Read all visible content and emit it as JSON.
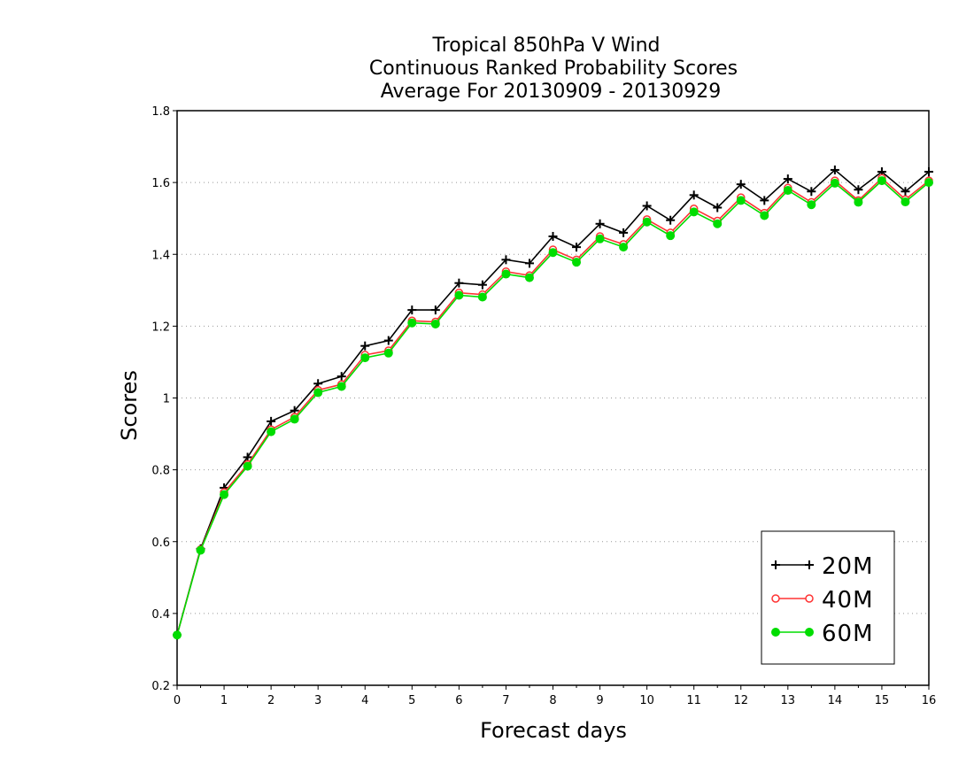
{
  "chart_data": {
    "type": "line",
    "title_lines": [
      "Tropical 850hPa V Wind",
      "Continuous Ranked Probability Scores",
      "Average For 20130909 - 20130929"
    ],
    "xlabel": "Forecast days",
    "ylabel": "Scores",
    "xlim": [
      0,
      16
    ],
    "ylim": [
      0.2,
      1.8
    ],
    "x_ticks": [
      0,
      1,
      2,
      3,
      4,
      5,
      6,
      7,
      8,
      9,
      10,
      11,
      12,
      13,
      14,
      15,
      16
    ],
    "y_ticks": [
      0.2,
      0.4,
      0.6,
      0.8,
      1,
      1.2,
      1.4,
      1.6,
      1.8
    ],
    "y_tick_labels": [
      "0.2",
      "0.4",
      "0.6",
      "0.8",
      "1",
      "1.2",
      "1.4",
      "1.6",
      "1.8"
    ],
    "grid": "horizontal dotted",
    "legend_position": "bottom-right",
    "x": [
      0,
      0.5,
      1,
      1.5,
      2,
      2.5,
      3,
      3.5,
      4,
      4.5,
      5,
      5.5,
      6,
      6.5,
      7,
      7.5,
      8,
      8.5,
      9,
      9.5,
      10,
      10.5,
      11,
      11.5,
      12,
      12.5,
      13,
      13.5,
      14,
      14.5,
      15,
      15.5,
      16
    ],
    "series": [
      {
        "name": "20M",
        "color": "#000000",
        "marker": "plus",
        "values": [
          0.34,
          0.58,
          0.75,
          0.835,
          0.935,
          0.965,
          1.04,
          1.06,
          1.145,
          1.16,
          1.245,
          1.245,
          1.32,
          1.315,
          1.385,
          1.375,
          1.45,
          1.42,
          1.485,
          1.46,
          1.535,
          1.495,
          1.565,
          1.53,
          1.595,
          1.55,
          1.61,
          1.575,
          1.635,
          1.58,
          1.63,
          1.575,
          1.63
        ]
      },
      {
        "name": "40M",
        "color": "#ff3333",
        "marker": "open-circle",
        "values": [
          0.34,
          0.578,
          0.737,
          0.815,
          0.912,
          0.947,
          1.022,
          1.038,
          1.12,
          1.132,
          1.215,
          1.212,
          1.293,
          1.288,
          1.352,
          1.341,
          1.413,
          1.385,
          1.45,
          1.428,
          1.497,
          1.46,
          1.527,
          1.493,
          1.558,
          1.515,
          1.585,
          1.545,
          1.605,
          1.55,
          1.612,
          1.553,
          1.605
        ]
      },
      {
        "name": "60M",
        "color": "#00dd00",
        "marker": "filled-circle",
        "values": [
          0.34,
          0.576,
          0.731,
          0.81,
          0.906,
          0.941,
          1.015,
          1.032,
          1.112,
          1.125,
          1.209,
          1.206,
          1.286,
          1.281,
          1.345,
          1.335,
          1.405,
          1.378,
          1.443,
          1.42,
          1.49,
          1.452,
          1.518,
          1.485,
          1.55,
          1.508,
          1.578,
          1.538,
          1.598,
          1.545,
          1.605,
          1.546,
          1.6
        ]
      }
    ]
  }
}
